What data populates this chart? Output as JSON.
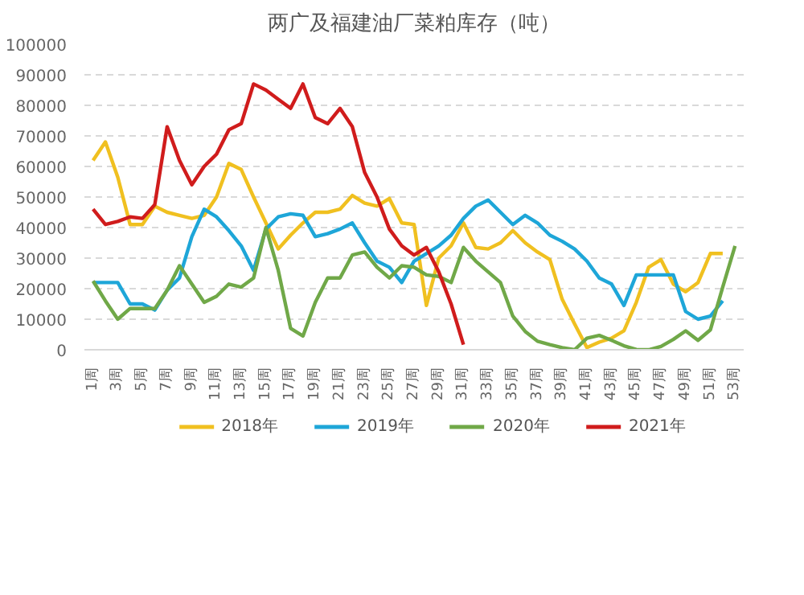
{
  "chart_data": {
    "type": "line",
    "title": "两广及福建油厂菜粕库存（吨）",
    "categories": [
      "1周",
      null,
      "3周",
      null,
      "5周",
      null,
      "7周",
      null,
      "9周",
      null,
      "11周",
      null,
      "13周",
      null,
      "15周",
      null,
      "17周",
      null,
      "19周",
      null,
      "21周",
      null,
      "23周",
      null,
      "25周",
      null,
      "27周",
      null,
      "29周",
      null,
      "31周",
      null,
      "33周",
      null,
      "35周",
      null,
      "37周",
      null,
      "39周",
      null,
      "41周",
      null,
      "43周",
      null,
      "45周",
      null,
      "47周",
      null,
      "49周",
      null,
      "51周",
      null,
      "53周"
    ],
    "ylim": [
      0,
      100000
    ],
    "yticks": [
      0,
      10000,
      20000,
      30000,
      40000,
      50000,
      60000,
      70000,
      80000,
      90000,
      100000
    ],
    "grid": "y",
    "legend": "bottom",
    "marker": "none",
    "line_style": "solid",
    "series": [
      {
        "name": "2018年",
        "color": "#f0c020",
        "values": [
          62000,
          68000,
          56500,
          41000,
          41000,
          47000,
          45000,
          44000,
          43000,
          44000,
          50000,
          61000,
          59000,
          50000,
          41500,
          33000,
          37500,
          41500,
          45000,
          45000,
          46000,
          50500,
          48000,
          47000,
          49500,
          41500,
          41000,
          14500,
          30000,
          34000,
          41500,
          33500,
          33000,
          35000,
          39000,
          35000,
          32000,
          29500,
          16500,
          8500,
          700,
          2500,
          3800,
          6200,
          15500,
          27000,
          29500,
          21500,
          19000,
          22000,
          31500,
          31500,
          null
        ]
      },
      {
        "name": "2019年",
        "color": "#1ea6d8",
        "values": [
          22000,
          22000,
          22000,
          15000,
          15000,
          13000,
          19500,
          23500,
          37000,
          46000,
          43500,
          39000,
          34000,
          26000,
          39500,
          43500,
          44500,
          44000,
          37000,
          38000,
          39500,
          41500,
          35000,
          29000,
          27000,
          22000,
          29000,
          31500,
          34000,
          37500,
          43000,
          47000,
          49000,
          45000,
          41000,
          44000,
          41500,
          37500,
          35500,
          33000,
          29000,
          23500,
          21500,
          14500,
          24500,
          24500,
          24500,
          24500,
          12500,
          10000,
          11000,
          16000,
          null
        ]
      },
      {
        "name": "2020年",
        "color": "#70a848",
        "values": [
          22500,
          16000,
          10000,
          13500,
          13500,
          13500,
          19500,
          27500,
          21500,
          15500,
          17500,
          21500,
          20500,
          23500,
          40000,
          26000,
          7000,
          4500,
          15500,
          23500,
          23500,
          31000,
          32000,
          27000,
          23500,
          27500,
          27000,
          24500,
          24000,
          22000,
          33500,
          29000,
          25500,
          22000,
          11000,
          6000,
          2800,
          1700,
          700,
          0,
          3800,
          4700,
          3100,
          1300,
          100,
          0,
          1100,
          3400,
          6200,
          3100,
          6500,
          20500,
          34000
        ]
      },
      {
        "name": "2021年",
        "color": "#d01c1c",
        "values": [
          46000,
          41000,
          42000,
          43500,
          43000,
          47500,
          73000,
          62000,
          54000,
          60000,
          64000,
          72000,
          74000,
          87000,
          85000,
          82000,
          79000,
          87000,
          76000,
          74000,
          79000,
          73000,
          58000,
          50000,
          39500,
          34000,
          31000,
          33500,
          25500,
          15000,
          1700,
          null,
          null,
          null,
          null,
          null,
          null,
          null,
          null,
          null,
          null,
          null,
          null,
          null,
          null,
          null,
          null,
          null,
          null,
          null,
          null,
          null,
          null
        ]
      }
    ]
  }
}
